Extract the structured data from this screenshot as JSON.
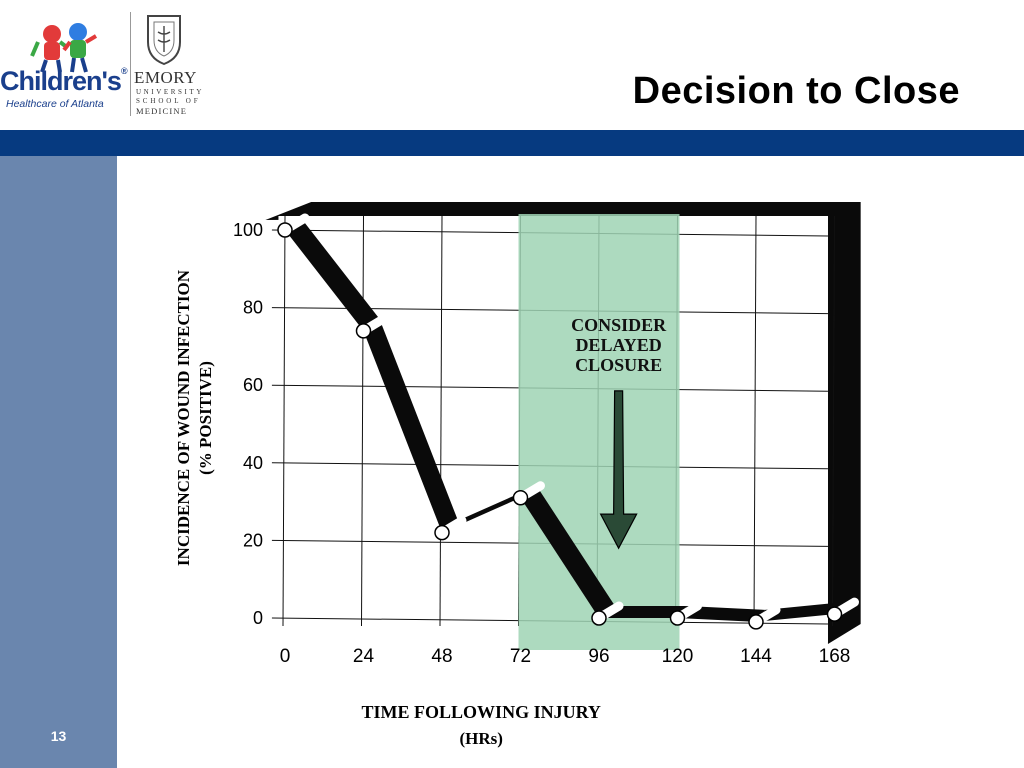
{
  "slide": {
    "title": "Decision to Close",
    "page_number": "13"
  },
  "logos": {
    "choa_name": "Children's",
    "choa_registered": "®",
    "choa_sub": "Healthcare of Atlanta",
    "emory_name": "EMORY",
    "emory_line2": "UNIVERSITY",
    "emory_line3": "SCHOOL OF",
    "emory_line4": "MEDICINE"
  },
  "colors": {
    "blue_bar": "#063a80",
    "side_panel": "#6a86ae",
    "highlight": "#9fd3b4",
    "ribbon": "#0a0a0a"
  },
  "chart_data": {
    "type": "line",
    "style": "3d-ribbon",
    "title": "",
    "xlabel_line1": "TIME FOLLOWING INJURY",
    "xlabel_line2": "(HRs)",
    "ylabel_line1": "INCIDENCE OF WOUND INFECTION",
    "ylabel_line2": "(% POSITIVE)",
    "x_ticks": [
      "0",
      "24",
      "48",
      "72",
      "96",
      "120",
      "144",
      "168"
    ],
    "y_ticks": [
      "0",
      "20",
      "40",
      "60",
      "80",
      "100"
    ],
    "xlim": [
      0,
      168
    ],
    "ylim": [
      0,
      100
    ],
    "grid": true,
    "series": [
      {
        "x": [
          0,
          24,
          48,
          72,
          96,
          120,
          144,
          168
        ],
        "y": [
          100,
          74,
          22,
          31,
          0,
          0,
          -1,
          1
        ]
      }
    ],
    "highlight_region": {
      "x_from": 72,
      "x_to": 120
    },
    "annotation": {
      "lines": [
        "CONSIDER",
        "DELAYED",
        "CLOSURE"
      ],
      "arrow": "down"
    }
  }
}
